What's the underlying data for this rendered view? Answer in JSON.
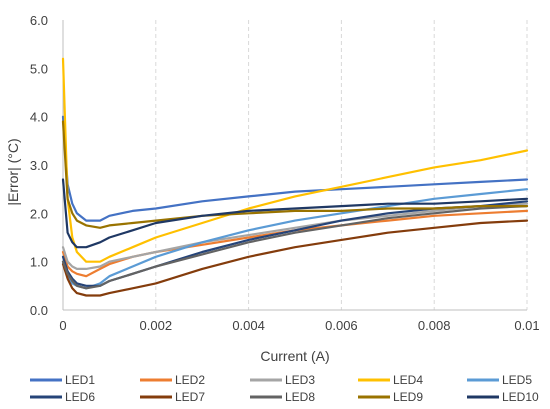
{
  "chart_data": {
    "type": "line",
    "title": "",
    "xlabel": "Current (A)",
    "ylabel": "|Error| (°C)",
    "xlim": [
      0,
      0.01
    ],
    "ylim": [
      0,
      6
    ],
    "x_ticks": [
      0,
      0.002,
      0.004,
      0.006,
      0.008,
      0.01
    ],
    "x_tick_labels": [
      "0",
      "0.002",
      "0.004",
      "0.006",
      "0.008",
      "0.01"
    ],
    "y_ticks": [
      0,
      1,
      2,
      3,
      4,
      5,
      6
    ],
    "y_tick_labels": [
      "0.0",
      "1.0",
      "2.0",
      "3.0",
      "4.0",
      "5.0",
      "6.0"
    ],
    "grid": {
      "horizontal": false,
      "vertical": true,
      "style": "dashed"
    },
    "legend": {
      "position": "bottom",
      "columns": 5
    },
    "x": [
      0,
      0.0001,
      0.0002,
      0.0003,
      0.0005,
      0.0008,
      0.001,
      0.0015,
      0.002,
      0.003,
      0.004,
      0.005,
      0.006,
      0.007,
      0.008,
      0.009,
      0.01
    ],
    "series": [
      {
        "name": "LED1",
        "color": "#4472C4",
        "values": [
          4.0,
          2.6,
          2.2,
          2.0,
          1.85,
          1.85,
          1.95,
          2.05,
          2.1,
          2.25,
          2.35,
          2.45,
          2.5,
          2.55,
          2.6,
          2.65,
          2.7
        ]
      },
      {
        "name": "LED2",
        "color": "#ED7D31",
        "values": [
          1.2,
          0.9,
          0.8,
          0.75,
          0.7,
          0.85,
          0.95,
          1.1,
          1.2,
          1.35,
          1.5,
          1.65,
          1.75,
          1.85,
          1.95,
          2.0,
          2.05
        ]
      },
      {
        "name": "LED3",
        "color": "#A5A5A5",
        "values": [
          1.3,
          1.0,
          0.9,
          0.85,
          0.85,
          0.9,
          1.0,
          1.1,
          1.2,
          1.4,
          1.55,
          1.7,
          1.85,
          1.95,
          2.05,
          2.15,
          2.2
        ]
      },
      {
        "name": "LED4",
        "color": "#FFC000",
        "values": [
          5.2,
          2.3,
          1.5,
          1.2,
          1.0,
          1.0,
          1.1,
          1.3,
          1.5,
          1.8,
          2.1,
          2.35,
          2.55,
          2.75,
          2.95,
          3.1,
          3.3
        ]
      },
      {
        "name": "LED5",
        "color": "#5B9BD5",
        "values": [
          1.0,
          0.7,
          0.55,
          0.5,
          0.45,
          0.55,
          0.7,
          0.9,
          1.1,
          1.4,
          1.65,
          1.85,
          2.0,
          2.15,
          2.3,
          2.4,
          2.5
        ]
      },
      {
        "name": "LED6",
        "color": "#264478",
        "values": [
          1.1,
          0.8,
          0.65,
          0.55,
          0.5,
          0.5,
          0.6,
          0.75,
          0.9,
          1.2,
          1.45,
          1.65,
          1.85,
          2.0,
          2.1,
          2.15,
          2.25
        ]
      },
      {
        "name": "LED7",
        "color": "#843C0C",
        "values": [
          0.95,
          0.65,
          0.45,
          0.35,
          0.3,
          0.3,
          0.35,
          0.45,
          0.55,
          0.85,
          1.1,
          1.3,
          1.45,
          1.6,
          1.7,
          1.8,
          1.85
        ]
      },
      {
        "name": "LED8",
        "color": "#636363",
        "values": [
          1.0,
          0.75,
          0.6,
          0.5,
          0.45,
          0.5,
          0.6,
          0.75,
          0.9,
          1.15,
          1.4,
          1.6,
          1.75,
          1.9,
          2.0,
          2.1,
          2.15
        ]
      },
      {
        "name": "LED9",
        "color": "#997300",
        "values": [
          3.9,
          2.3,
          2.0,
          1.85,
          1.75,
          1.7,
          1.75,
          1.8,
          1.85,
          1.95,
          2.0,
          2.05,
          2.05,
          2.1,
          2.1,
          2.15,
          2.15
        ]
      },
      {
        "name": "LED10",
        "color": "#1F3864",
        "values": [
          2.7,
          1.6,
          1.4,
          1.3,
          1.3,
          1.4,
          1.5,
          1.65,
          1.8,
          1.95,
          2.05,
          2.1,
          2.15,
          2.2,
          2.2,
          2.25,
          2.3
        ]
      }
    ]
  }
}
